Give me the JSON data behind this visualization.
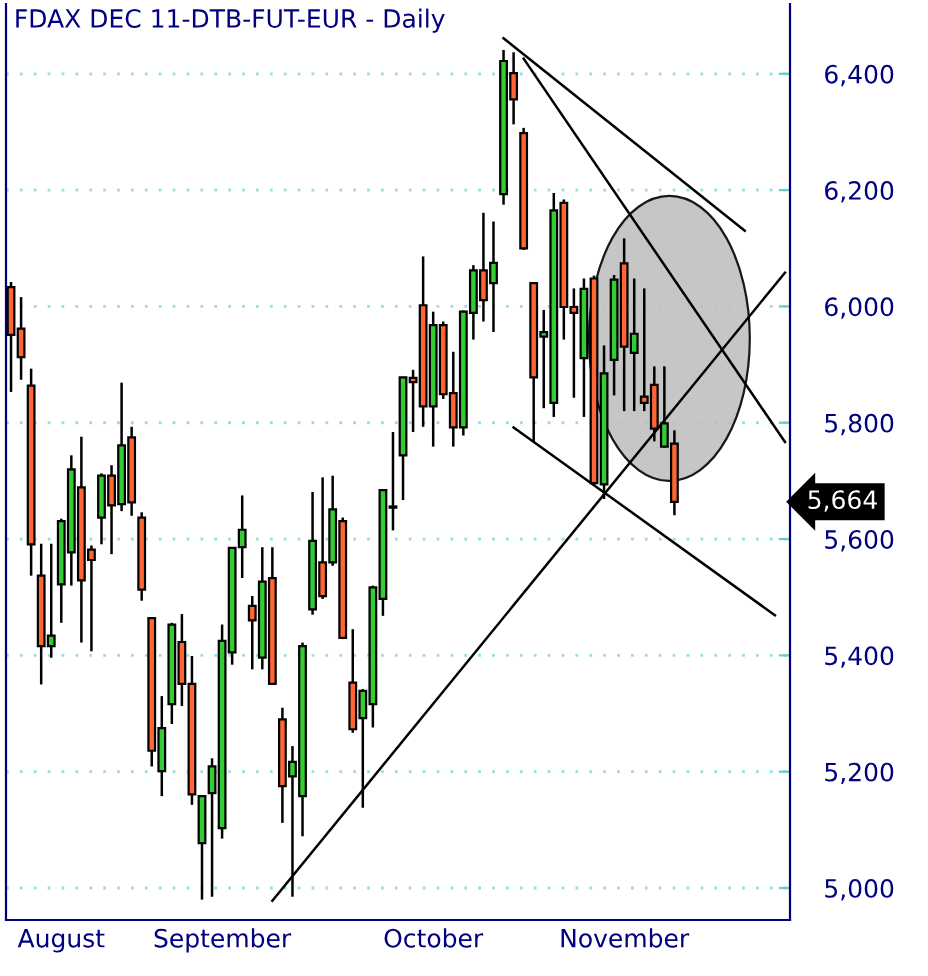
{
  "chart_data": {
    "type": "candlestick",
    "title": "FDAX DEC 11-DTB-FUT-EUR - Daily",
    "categories": [
      null,
      null,
      null,
      null,
      null,
      "August",
      null,
      null,
      null,
      null,
      null,
      null,
      null,
      null,
      null,
      null,
      null,
      null,
      null,
      null,
      null,
      "September",
      null,
      null,
      null,
      null,
      null,
      null,
      null,
      null,
      null,
      null,
      null,
      null,
      null,
      null,
      null,
      null,
      null,
      null,
      null,
      null,
      "October",
      null,
      null,
      null,
      null,
      null,
      null,
      null,
      null,
      null,
      null,
      null,
      null,
      null,
      null,
      null,
      null,
      null,
      null,
      "November",
      null,
      null,
      null,
      null,
      null,
      null,
      null,
      null,
      null,
      null,
      null,
      null,
      null,
      null,
      null,
      null
    ],
    "ohlc": [
      [
        6033,
        6042,
        5853,
        5951
      ],
      [
        5962,
        6016,
        5874,
        5913
      ],
      [
        5864,
        5893,
        5537,
        5591
      ],
      [
        5537,
        5592,
        5350,
        5416
      ],
      [
        5416,
        5592,
        5396,
        5434
      ],
      [
        5522,
        5635,
        5456,
        5631
      ],
      [
        5577,
        5744,
        5520,
        5720
      ],
      [
        5689,
        5776,
        5422,
        5529
      ],
      [
        5582,
        5589,
        5407,
        5564
      ],
      [
        5637,
        5713,
        5591,
        5709
      ],
      [
        5709,
        5727,
        5574,
        5658
      ],
      [
        5660,
        5869,
        5648,
        5761
      ],
      [
        5775,
        5793,
        5640,
        5663
      ],
      [
        5637,
        5646,
        5494,
        5513
      ],
      [
        5464,
        5466,
        5209,
        5236
      ],
      [
        5201,
        5330,
        5158,
        5275
      ],
      [
        5316,
        5456,
        5282,
        5453
      ],
      [
        5423,
        5471,
        5313,
        5351
      ],
      [
        5351,
        5399,
        5143,
        5161
      ],
      [
        5077,
        5158,
        4980,
        5158
      ],
      [
        5163,
        5223,
        4985,
        5209
      ],
      [
        5103,
        5453,
        5085,
        5425
      ],
      [
        5405,
        5586,
        5384,
        5585
      ],
      [
        5586,
        5675,
        5533,
        5616
      ],
      [
        5485,
        5502,
        5376,
        5460
      ],
      [
        5396,
        5586,
        5376,
        5527
      ],
      [
        5533,
        5586,
        5351,
        5351
      ],
      [
        5290,
        5310,
        5112,
        5175
      ],
      [
        5192,
        5244,
        4985,
        5217
      ],
      [
        5158,
        5422,
        5089,
        5416
      ],
      [
        5479,
        5681,
        5470,
        5597
      ],
      [
        5560,
        5706,
        5497,
        5502
      ],
      [
        5560,
        5709,
        5554,
        5651
      ],
      [
        5631,
        5637,
        5428,
        5430
      ],
      [
        5353,
        5445,
        5267,
        5273
      ],
      [
        5292,
        5342,
        5138,
        5339
      ],
      [
        5316,
        5520,
        5276,
        5517
      ],
      [
        5497,
        5686,
        5468,
        5684
      ],
      [
        5654,
        5784,
        5615,
        5656
      ],
      [
        5744,
        5879,
        5667,
        5878
      ],
      [
        5877,
        5891,
        5784,
        5870
      ],
      [
        6002,
        6086,
        5793,
        5828
      ],
      [
        5828,
        5991,
        5759,
        5968
      ],
      [
        5968,
        5974,
        5841,
        5849
      ],
      [
        5851,
        5922,
        5759,
        5792
      ],
      [
        5792,
        5993,
        5778,
        5991
      ],
      [
        5989,
        6071,
        5943,
        6062
      ],
      [
        6062,
        6161,
        5974,
        6011
      ],
      [
        6040,
        6146,
        5956,
        6075
      ],
      [
        6193,
        6441,
        6175,
        6422
      ],
      [
        6401,
        6437,
        6313,
        6356
      ],
      [
        6298,
        6307,
        6097,
        6100
      ],
      [
        6040,
        6040,
        5768,
        5878
      ],
      [
        5948,
        5994,
        5825,
        5956
      ],
      [
        5834,
        6195,
        5810,
        6165
      ],
      [
        6178,
        6184,
        5943,
        5999
      ],
      [
        5999,
        6031,
        5843,
        5989
      ],
      [
        5911,
        6048,
        5810,
        6030
      ],
      [
        6048,
        6053,
        5693,
        5696
      ],
      [
        5694,
        5933,
        5669,
        5885
      ],
      [
        5908,
        6054,
        5847,
        6046
      ],
      [
        6074,
        6117,
        5820,
        5931
      ],
      [
        5920,
        6048,
        5820,
        5953
      ],
      [
        5845,
        6031,
        5820,
        5834
      ],
      [
        5865,
        5897,
        5768,
        5790
      ],
      [
        5759,
        5897,
        5757,
        5799
      ],
      [
        5764,
        5787,
        5641,
        5664
      ],
      null,
      null,
      null,
      null,
      null,
      null,
      null,
      null,
      null,
      null,
      null
    ],
    "colors": [
      "#ff6633",
      "#ff6633",
      "#ff6633",
      "#ff6633",
      "#33cc33",
      "#33cc33",
      "#33cc33",
      "#ff6633",
      "#ff6633",
      "#33cc33",
      "#ff6633",
      "#33cc33",
      "#ff6633",
      "#ff6633",
      "#ff6633",
      "#33cc33",
      "#33cc33",
      "#ff6633",
      "#ff6633",
      "#33cc33",
      "#33cc33",
      "#33cc33",
      "#33cc33",
      "#33cc33",
      "#ff6633",
      "#33cc33",
      "#ff6633",
      "#ff6633",
      "#33cc33",
      "#33cc33",
      "#33cc33",
      "#ff6633",
      "#33cc33",
      "#ff6633",
      "#ff6633",
      "#33cc33",
      "#33cc33",
      "#33cc33",
      "#33cc33",
      "#33cc33",
      "#ff6633",
      "#ff6633",
      "#33cc33",
      "#ff6633",
      "#ff6633",
      "#33cc33",
      "#33cc33",
      "#ff6633",
      "#33cc33",
      "#33cc33",
      "#ff6633",
      "#ff6633",
      "#ff6633",
      "#33cc33",
      "#33cc33",
      "#ff6633",
      "#ff6633",
      "#33cc33",
      "#ff6633",
      "#33cc33",
      "#33cc33",
      "#ff6633",
      "#33cc33",
      "#ff6633",
      "#ff6633",
      "#33cc33",
      "#ff6633",
      null,
      null,
      null,
      null,
      null,
      null,
      null,
      null,
      null,
      null,
      null
    ],
    "series": [
      {
        "type": "line",
        "color": "#000000",
        "values": [
          null,
          null,
          null,
          null,
          null,
          null,
          null,
          null,
          null,
          null,
          null,
          null,
          null,
          null,
          null,
          null,
          null,
          null,
          null,
          null,
          null,
          null,
          null,
          null,
          null,
          null,
          4978,
          null,
          null,
          null,
          null,
          null,
          null,
          null,
          null,
          null,
          null,
          null,
          null,
          null,
          null,
          null,
          null,
          null,
          null,
          null,
          null,
          null,
          null,
          null,
          null,
          null,
          null,
          null,
          null,
          null,
          null,
          null,
          null,
          null,
          null,
          null,
          null,
          null,
          null,
          null,
          null,
          null,
          null,
          null,
          null,
          null,
          null,
          null,
          null,
          null,
          null,
          6058
        ]
      },
      {
        "type": "line",
        "color": "#000000",
        "values": [
          null,
          null,
          null,
          null,
          null,
          null,
          null,
          null,
          null,
          null,
          null,
          null,
          null,
          null,
          null,
          null,
          null,
          null,
          null,
          null,
          null,
          null,
          null,
          null,
          null,
          null,
          null,
          null,
          null,
          null,
          null,
          null,
          null,
          null,
          null,
          null,
          null,
          null,
          null,
          null,
          null,
          null,
          null,
          null,
          null,
          null,
          null,
          null,
          null,
          6461,
          null,
          null,
          null,
          null,
          null,
          null,
          null,
          null,
          null,
          null,
          null,
          null,
          null,
          null,
          null,
          null,
          null,
          null,
          null,
          null,
          null,
          null,
          null,
          6130,
          null,
          null,
          null,
          null
        ]
      },
      {
        "type": "line",
        "color": "#000000",
        "values": [
          null,
          null,
          null,
          null,
          null,
          null,
          null,
          null,
          null,
          null,
          null,
          null,
          null,
          null,
          null,
          null,
          null,
          null,
          null,
          null,
          null,
          null,
          null,
          null,
          null,
          null,
          null,
          null,
          null,
          null,
          null,
          null,
          null,
          null,
          null,
          null,
          null,
          null,
          null,
          null,
          null,
          null,
          null,
          null,
          null,
          null,
          null,
          null,
          null,
          null,
          null,
          6426,
          null,
          null,
          null,
          null,
          null,
          null,
          null,
          null,
          null,
          null,
          null,
          null,
          null,
          null,
          null,
          null,
          null,
          null,
          null,
          null,
          null,
          null,
          null,
          null,
          null,
          5767
        ]
      },
      {
        "type": "line",
        "color": "#000000",
        "values": [
          null,
          null,
          null,
          null,
          null,
          null,
          null,
          null,
          null,
          null,
          null,
          null,
          null,
          null,
          null,
          null,
          null,
          null,
          null,
          null,
          null,
          null,
          null,
          null,
          null,
          null,
          null,
          null,
          null,
          null,
          null,
          null,
          null,
          null,
          null,
          null,
          null,
          null,
          null,
          null,
          null,
          null,
          null,
          null,
          null,
          null,
          null,
          null,
          null,
          null,
          5792,
          null,
          null,
          null,
          null,
          null,
          null,
          null,
          null,
          null,
          null,
          null,
          null,
          null,
          null,
          null,
          null,
          null,
          null,
          null,
          null,
          null,
          null,
          null,
          null,
          null,
          5469,
          null
        ]
      }
    ],
    "annotations": [
      "5,664"
    ],
    "ylim": [
      4945,
      6520
    ],
    "yticks": [
      {
        "value": 5000,
        "label": "5,000"
      },
      {
        "value": 5200,
        "label": "5,200"
      },
      {
        "value": 5400,
        "label": "5,400"
      },
      {
        "value": 5600,
        "label": "5,600"
      },
      {
        "value": 5800,
        "label": "5,800"
      },
      {
        "value": 6000,
        "label": "6,000"
      },
      {
        "value": 6200,
        "label": "6,200"
      },
      {
        "value": 6400,
        "label": "6,400"
      }
    ],
    "grid": "y"
  }
}
